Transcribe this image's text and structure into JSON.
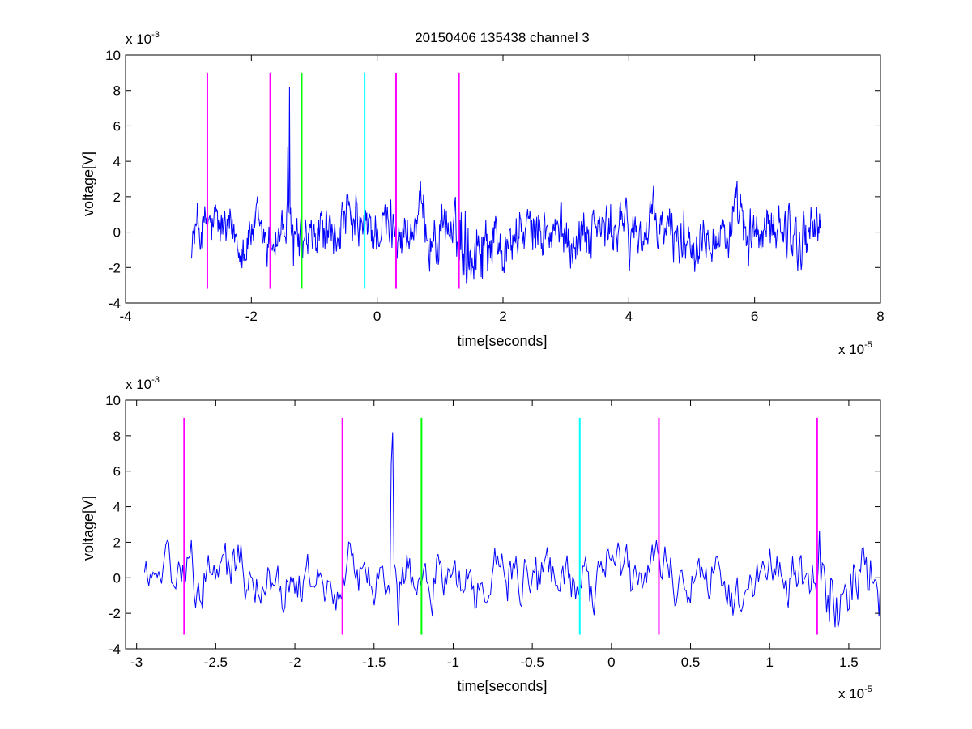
{
  "figure_title": "20150406 135438 channel 3",
  "colors": {
    "signal": "#0000ff",
    "magenta": "#ff00ff",
    "green": "#00ff00",
    "cyan": "#00ffff",
    "axis": "#000000"
  },
  "chart_data": [
    {
      "type": "line",
      "title": "20150406 135438 channel 3",
      "xlabel": "time[seconds]",
      "ylabel": "voltage[V]",
      "x_exponent_label": "x 10",
      "x_exponent": "-5",
      "y_exponent_label": "x 10",
      "y_exponent": "-3",
      "xlim": [
        -4,
        8
      ],
      "ylim": [
        -4,
        10
      ],
      "xticks": [
        -4,
        -2,
        0,
        2,
        4,
        6,
        8
      ],
      "xtick_labels": [
        "-4",
        "-2",
        "0",
        "2",
        "4",
        "6",
        "8"
      ],
      "yticks": [
        -4,
        -2,
        0,
        2,
        4,
        6,
        8,
        10
      ],
      "ytick_labels": [
        "-4",
        "-2",
        "0",
        "2",
        "4",
        "6",
        "8",
        "10"
      ],
      "grid": false,
      "signal_x_range": [
        -2.95,
        7.05
      ],
      "events": [
        {
          "x": -2.7,
          "color": "magenta",
          "y_range": [
            -3.2,
            9
          ]
        },
        {
          "x": -1.7,
          "color": "magenta",
          "y_range": [
            -3.2,
            9
          ]
        },
        {
          "x": -1.2,
          "color": "green",
          "y_range": [
            -3.2,
            9
          ]
        },
        {
          "x": -0.2,
          "color": "cyan",
          "y_range": [
            -3.2,
            9
          ]
        },
        {
          "x": 0.3,
          "color": "magenta",
          "y_range": [
            -3.2,
            9
          ]
        },
        {
          "x": 1.3,
          "color": "magenta",
          "y_range": [
            -3.2,
            9
          ]
        }
      ],
      "spikes": [
        {
          "x": -1.39,
          "y": 8.2
        },
        {
          "x": -1.42,
          "y": 4.8
        },
        {
          "x": -1.33,
          "y": -1.9
        }
      ]
    },
    {
      "type": "line",
      "title": "",
      "xlabel": "time[seconds]",
      "ylabel": "voltage[V]",
      "x_exponent_label": "x 10",
      "x_exponent": "-5",
      "y_exponent_label": "x 10",
      "y_exponent": "-3",
      "xlim": [
        -3.07,
        1.7
      ],
      "ylim": [
        -4,
        10
      ],
      "xticks": [
        -3,
        -2.5,
        -2,
        -1.5,
        -1,
        -0.5,
        0,
        0.5,
        1,
        1.5
      ],
      "xtick_labels": [
        "-3",
        "-2.5",
        "-2",
        "-1.5",
        "-1",
        "-0.5",
        "0",
        "0.5",
        "1",
        "1.5"
      ],
      "yticks": [
        -4,
        -2,
        0,
        2,
        4,
        6,
        8,
        10
      ],
      "ytick_labels": [
        "-4",
        "-2",
        "0",
        "2",
        "4",
        "6",
        "8",
        "10"
      ],
      "grid": false,
      "signal_x_range": [
        -2.95,
        1.7
      ],
      "events": [
        {
          "x": -2.7,
          "color": "magenta",
          "y_range": [
            -3.2,
            9
          ]
        },
        {
          "x": -1.7,
          "color": "magenta",
          "y_range": [
            -3.2,
            9
          ]
        },
        {
          "x": -1.2,
          "color": "green",
          "y_range": [
            -3.2,
            9
          ]
        },
        {
          "x": -0.2,
          "color": "cyan",
          "y_range": [
            -3.2,
            9
          ]
        },
        {
          "x": 0.3,
          "color": "magenta",
          "y_range": [
            -3.2,
            9
          ]
        },
        {
          "x": 1.3,
          "color": "magenta",
          "y_range": [
            -3.2,
            9
          ]
        }
      ],
      "spikes": [
        {
          "x": -1.38,
          "y": 8.2
        },
        {
          "x": -1.39,
          "y": 6.4
        },
        {
          "x": -1.35,
          "y": -2.7
        }
      ]
    }
  ]
}
